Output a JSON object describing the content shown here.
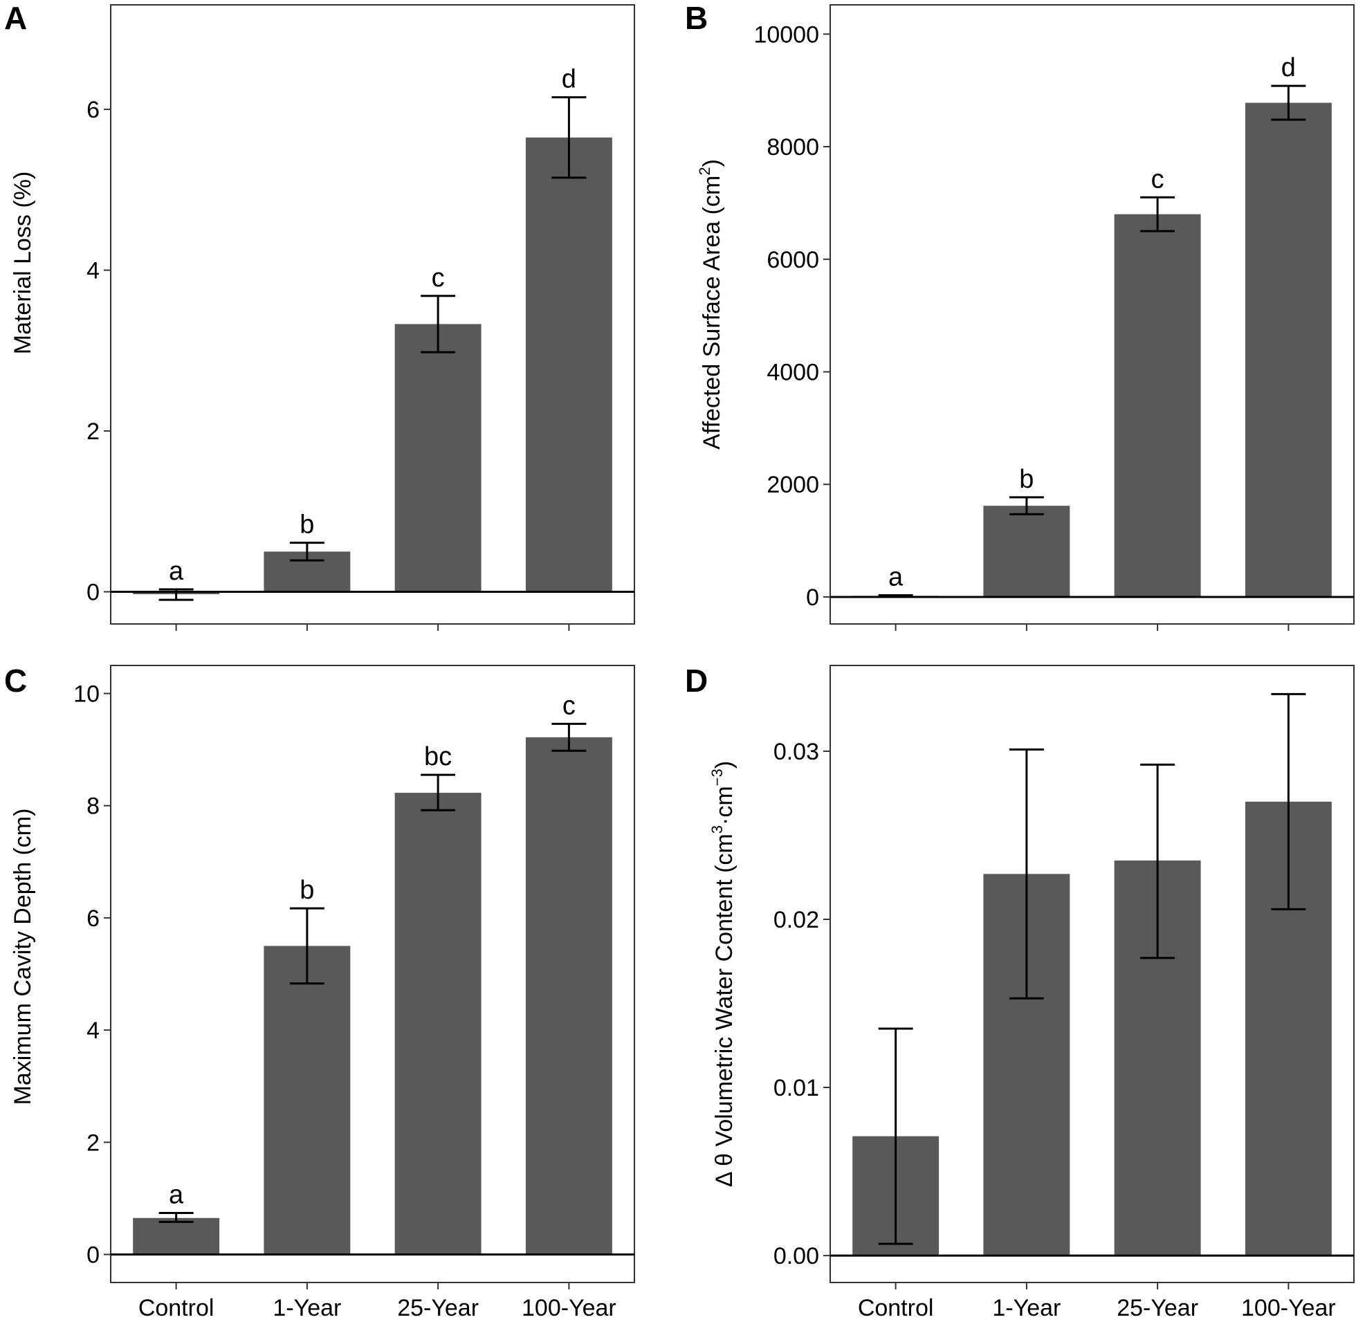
{
  "colors": {
    "bar": "#595959",
    "axis": "#000000",
    "background": "#ffffff"
  },
  "chart_data": [
    {
      "type": "bar",
      "panel": "A",
      "title": "",
      "xlabel": "",
      "ylabel": "Material Loss (%)",
      "categories": [
        "Control",
        "1-Year",
        "25-Year",
        "100-Year"
      ],
      "values": [
        -0.03,
        0.5,
        3.33,
        5.65
      ],
      "error_low": [
        -0.1,
        0.39,
        2.98,
        5.15
      ],
      "error_high": [
        0.03,
        0.61,
        3.68,
        6.15
      ],
      "significance": [
        "a",
        "b",
        "c",
        "d"
      ],
      "ylim": [
        -0.4,
        7.3
      ],
      "yticks": [
        0,
        2,
        4,
        6
      ],
      "ytick_labels": [
        "0",
        "2",
        "4",
        "6"
      ],
      "show_xtick_labels": false
    },
    {
      "type": "bar",
      "panel": "B",
      "title": "",
      "xlabel": "",
      "ylabel": "Affected Surface Area (cm2)",
      "ylabel_parts": {
        "main": "Affected Surface Area (cm",
        "sup": "2",
        "end": ")"
      },
      "categories": [
        "Control",
        "1-Year",
        "25-Year",
        "100-Year"
      ],
      "values": [
        20,
        1620,
        6800,
        8780
      ],
      "error_low": [
        10,
        1470,
        6500,
        8480
      ],
      "error_high": [
        30,
        1770,
        7100,
        9080
      ],
      "significance": [
        "a",
        "b",
        "c",
        "d"
      ],
      "ylim": [
        -480,
        10520
      ],
      "yticks": [
        0,
        2000,
        4000,
        6000,
        8000,
        10000
      ],
      "ytick_labels": [
        "0",
        "2000",
        "4000",
        "6000",
        "8000",
        "10000"
      ],
      "show_xtick_labels": false
    },
    {
      "type": "bar",
      "panel": "C",
      "title": "",
      "xlabel": "",
      "ylabel": "Maximum Cavity Depth (cm)",
      "categories": [
        "Control",
        "1-Year",
        "25-Year",
        "100-Year"
      ],
      "values": [
        0.65,
        5.5,
        8.23,
        9.22
      ],
      "error_low": [
        0.58,
        4.83,
        7.92,
        8.98
      ],
      "error_high": [
        0.74,
        6.17,
        8.55,
        9.46
      ],
      "significance": [
        "a",
        "b",
        "bc",
        "c"
      ],
      "ylim": [
        -0.5,
        10.5
      ],
      "yticks": [
        0,
        2,
        4,
        6,
        8,
        10
      ],
      "ytick_labels": [
        "0",
        "2",
        "4",
        "6",
        "8",
        "10"
      ],
      "show_xtick_labels": true
    },
    {
      "type": "bar",
      "panel": "D",
      "title": "",
      "xlabel": "",
      "ylabel": "Δ θ Volumetric Water Content (cm3·cm−3)",
      "ylabel_parts": {
        "main": "Δ θ Volumetric Water Content (cm",
        "sup": "3",
        "mid": "·cm",
        "sup2": "−3",
        "end": ")"
      },
      "categories": [
        "Control",
        "1-Year",
        "25-Year",
        "100-Year"
      ],
      "values": [
        0.0071,
        0.0227,
        0.0235,
        0.027
      ],
      "error_low": [
        0.0007,
        0.0153,
        0.0177,
        0.0206
      ],
      "error_high": [
        0.0135,
        0.0301,
        0.0292,
        0.0334
      ],
      "significance": [],
      "ylim": [
        -0.0016,
        0.0351
      ],
      "yticks": [
        0,
        0.01,
        0.02,
        0.03
      ],
      "ytick_labels": [
        "0.00",
        "0.01",
        "0.02",
        "0.03"
      ],
      "show_xtick_labels": true
    }
  ]
}
